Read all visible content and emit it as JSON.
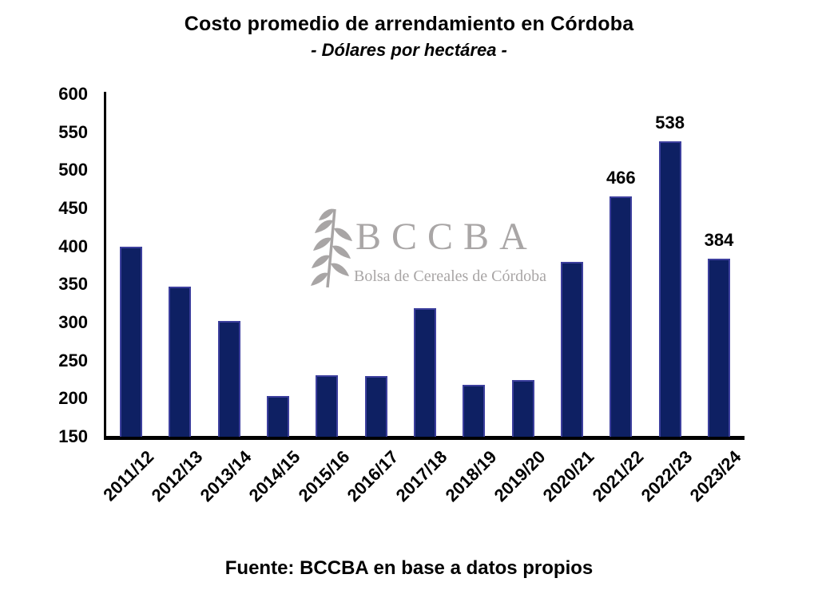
{
  "header": {
    "title": "Costo promedio de arrendamiento en Córdoba",
    "subtitle": "- Dólares por hectárea -"
  },
  "watermark": {
    "icon": "wheat-spike-icon",
    "acronym": "BCCBA",
    "name": "Bolsa de Cereales de Córdoba",
    "color": "#a9a6a6"
  },
  "footer": {
    "source": "Fuente: BCCBA en base a datos propios"
  },
  "chart_data": {
    "type": "bar",
    "title": "Costo promedio de arrendamiento en Córdoba",
    "subtitle": "- Dólares por hectárea -",
    "categories": [
      "2011/12",
      "2012/13",
      "2013/14",
      "2014/15",
      "2015/16",
      "2016/17",
      "2017/18",
      "2018/19",
      "2019/20",
      "2020/21",
      "2021/22",
      "2022/23",
      "2023/24"
    ],
    "values": [
      400,
      347,
      302,
      203,
      231,
      230,
      319,
      218,
      224,
      380,
      466,
      538,
      384
    ],
    "data_labels_shown": {
      "2021/22": "466",
      "2022/23": "538",
      "2023/24": "384"
    },
    "ylim": [
      150,
      600
    ],
    "yticks": [
      600,
      550,
      500,
      450,
      400,
      350,
      300,
      250,
      200,
      150
    ],
    "xlabel": "",
    "ylabel": "",
    "grid": false,
    "legend": false,
    "x_tick_rotation_deg": 45,
    "bar_color": "#0e2063",
    "bar_border_color": "#3c3f9d",
    "axis_color": "#000000",
    "label_color": "#000000"
  }
}
